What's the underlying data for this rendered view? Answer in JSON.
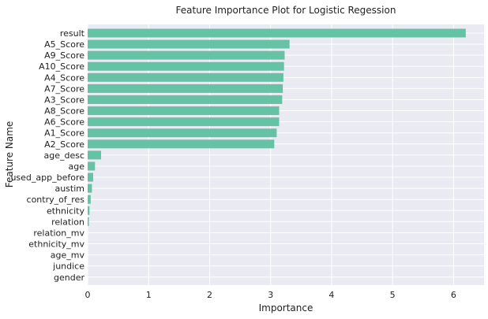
{
  "chart_data": {
    "type": "bar",
    "orientation": "horizontal",
    "title": "Feature Importance Plot for Logistic Regession",
    "xlabel": "Importance",
    "ylabel": "Feature Name",
    "xlim": [
      0,
      6.5
    ],
    "xticks": [
      0,
      1,
      2,
      3,
      4,
      5,
      6
    ],
    "grid": true,
    "colors": {
      "bar": "#66c2a5",
      "background": "#eaeaf2",
      "grid": "#ffffff"
    },
    "categories": [
      "result",
      "A5_Score",
      "A9_Score",
      "A10_Score",
      "A4_Score",
      "A7_Score",
      "A3_Score",
      "A8_Score",
      "A6_Score",
      "A1_Score",
      "A2_Score",
      "age_desc",
      "age",
      "used_app_before",
      "austim",
      "contry_of_res",
      "ethnicity",
      "relation",
      "relation_mv",
      "ethnicity_mv",
      "age_mv",
      "jundice",
      "gender"
    ],
    "values": [
      6.2,
      3.31,
      3.23,
      3.22,
      3.21,
      3.2,
      3.19,
      3.14,
      3.14,
      3.1,
      3.06,
      0.22,
      0.12,
      0.09,
      0.07,
      0.05,
      0.03,
      0.02,
      0.0,
      0.0,
      0.0,
      0.0,
      0.0
    ]
  }
}
